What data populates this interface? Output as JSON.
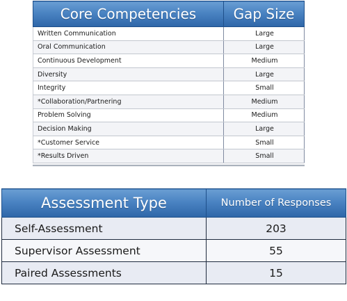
{
  "competencies_table": {
    "headers": {
      "competency": "Core Competencies",
      "gap": "Gap Size"
    },
    "rows": [
      {
        "competency": "Written Communication",
        "gap": "Large"
      },
      {
        "competency": "Oral Communication",
        "gap": "Large"
      },
      {
        "competency": "Continuous Development",
        "gap": "Medium"
      },
      {
        "competency": "Diversity",
        "gap": "Large"
      },
      {
        "competency": "Integrity",
        "gap": "Small"
      },
      {
        "competency": "*Collaboration/Partnering",
        "gap": "Medium"
      },
      {
        "competency": "Problem Solving",
        "gap": "Medium"
      },
      {
        "competency": "Decision Making",
        "gap": "Large"
      },
      {
        "competency": "*Customer Service",
        "gap": "Small"
      },
      {
        "competency": "*Results Driven",
        "gap": "Small"
      }
    ]
  },
  "assessment_table": {
    "headers": {
      "type": "Assessment Type",
      "responses": "Number of Responses"
    },
    "rows": [
      {
        "type": "Self-Assessment",
        "responses": "203"
      },
      {
        "type": "Supervisor Assessment",
        "responses": "55"
      },
      {
        "type": "Paired Assessments",
        "responses": "15"
      }
    ]
  },
  "colors": {
    "header_blue": "#4a83c2",
    "header_border": "#1e4f8a",
    "row_tint": "#e8ebf3"
  }
}
